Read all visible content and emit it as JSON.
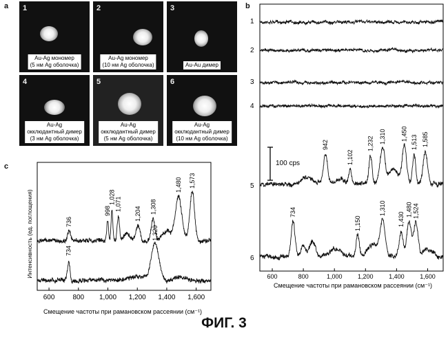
{
  "panel_a": {
    "label": "a",
    "tiles": [
      {
        "num": "1",
        "caption": [
          "Au-Ag мономер",
          "(5 нм Ag оболочка)"
        ]
      },
      {
        "num": "2",
        "caption": [
          "Au-Ag мономер",
          "(10 нм Ag оболочка)"
        ]
      },
      {
        "num": "3",
        "caption": [
          "Au-Au димер"
        ]
      },
      {
        "num": "4",
        "caption": [
          "Au-Ag",
          "окклюдантный димер",
          "(3 нм Ag оболочка)"
        ]
      },
      {
        "num": "5",
        "caption": [
          "Au-Ag",
          "окклюдантный димер",
          "(5 нм Ag оболочка)"
        ]
      },
      {
        "num": "6",
        "caption": [
          "Au-Ag",
          "окклюдантный димер",
          "(10 нм Ag оболочка)"
        ]
      }
    ]
  },
  "panel_b": {
    "label": "b",
    "xlabel": "Смещение частоты при рамановском рассеянии (см⁻¹)",
    "scale_bar": "100 cps"
  },
  "panel_c": {
    "label": "c",
    "ylabel": "Интенсивность (ед. поглощения)",
    "xlabel": "Смещение частоты при рамановском рассеянии (см⁻¹)"
  },
  "figure_caption": "ФИГ. 3",
  "chart_data": [
    {
      "type": "line",
      "panel": "b",
      "xlim": [
        520,
        1700
      ],
      "xticks": [
        600,
        800,
        1000,
        1200,
        1400,
        1600
      ],
      "xtick_labels": [
        "600",
        "800",
        "1,000",
        "1,200",
        "1,400",
        "1,600"
      ],
      "series": [
        {
          "name": "1",
          "peaks": []
        },
        {
          "name": "2",
          "peaks": []
        },
        {
          "name": "3",
          "peaks": []
        },
        {
          "name": "4",
          "peaks": []
        },
        {
          "name": "5",
          "peaks": [
            {
              "x": 942,
              "label": "942"
            },
            {
              "x": 1102,
              "label": "1,102"
            },
            {
              "x": 1232,
              "label": "1,232"
            },
            {
              "x": 1310,
              "label": "1,310"
            },
            {
              "x": 1450,
              "label": "1,450"
            },
            {
              "x": 1513,
              "label": "1,513"
            },
            {
              "x": 1585,
              "label": "1,585"
            }
          ]
        },
        {
          "name": "6",
          "peaks": [
            {
              "x": 734,
              "label": "734"
            },
            {
              "x": 1150,
              "label": "1,150"
            },
            {
              "x": 1310,
              "label": "1,310"
            },
            {
              "x": 1430,
              "label": "1,430"
            },
            {
              "x": 1480,
              "label": "1,480"
            },
            {
              "x": 1524,
              "label": "1,524"
            }
          ]
        }
      ]
    },
    {
      "type": "line",
      "panel": "c",
      "xlim": [
        520,
        1700
      ],
      "xticks": [
        600,
        800,
        1000,
        1200,
        1400,
        1600
      ],
      "xtick_labels": [
        "600",
        "800",
        "1,000",
        "1,200",
        "1,400",
        "1,600"
      ],
      "series": [
        {
          "peaks": [
            {
              "x": 736,
              "label": "736"
            },
            {
              "x": 998,
              "label": "998"
            },
            {
              "x": 1028,
              "label": "1,028"
            },
            {
              "x": 1071,
              "label": "1,071"
            },
            {
              "x": 1204,
              "label": "1,204"
            },
            {
              "x": 1308,
              "label": "1,308"
            },
            {
              "x": 1480,
              "label": "1,480"
            },
            {
              "x": 1573,
              "label": "1,573"
            }
          ]
        },
        {
          "peaks": [
            {
              "x": 734,
              "label": "734"
            },
            {
              "x": 1320,
              "label": "1,320"
            }
          ]
        }
      ]
    }
  ]
}
